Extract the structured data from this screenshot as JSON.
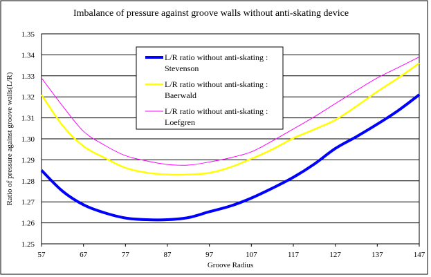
{
  "chart_data": {
    "type": "line",
    "title": "Imbalance of pressure against groove walls without anti-skating device",
    "xlabel": "Groove Radius",
    "ylabel": "Ratio of pressure against groove walls(L/R)",
    "xlim": [
      57,
      147
    ],
    "ylim": [
      1.25,
      1.35
    ],
    "xticks": [
      "57",
      "67",
      "77",
      "87",
      "97",
      "107",
      "117",
      "127",
      "137",
      "147"
    ],
    "yticks": [
      "1.25",
      "1.26",
      "1.27",
      "1.28",
      "1.29",
      "1.30",
      "1.31",
      "1.32",
      "1.33",
      "1.34",
      "1.35"
    ],
    "grid": true,
    "legend_position": "top-center",
    "x": [
      57,
      62,
      67,
      72,
      77,
      82,
      87,
      92,
      97,
      102,
      107,
      112,
      117,
      122,
      127,
      132,
      137,
      142,
      147
    ],
    "series": [
      {
        "name": "L/R ratio without anti-skating : Stevenson",
        "line1": "L/R ratio without anti-skating :",
        "line2": "Stevenson",
        "color": "#0000ff",
        "width": 4,
        "values": [
          1.285,
          1.2751,
          1.2686,
          1.2648,
          1.2623,
          1.2615,
          1.2615,
          1.2625,
          1.2653,
          1.268,
          1.2718,
          1.2765,
          1.2817,
          1.288,
          1.2954,
          1.301,
          1.307,
          1.3135,
          1.321
        ]
      },
      {
        "name": "L/R ratio without anti-skating : Baerwald",
        "line1": "L/R ratio without anti-skating :",
        "line2": "Baerwald",
        "color": "#ffff00",
        "width": 2.5,
        "values": [
          1.321,
          1.3064,
          1.2965,
          1.291,
          1.2862,
          1.2839,
          1.283,
          1.283,
          1.2838,
          1.2865,
          1.2905,
          1.295,
          1.3003,
          1.3045,
          1.309,
          1.3155,
          1.3225,
          1.329,
          1.336
        ]
      },
      {
        "name": "L/R ratio without anti-skating : Loefgren",
        "line1": "L/R ratio without anti-skating :",
        "line2": "Loefgren",
        "color": "#ff00ff",
        "width": 1,
        "values": [
          1.329,
          1.3157,
          1.3036,
          1.297,
          1.292,
          1.2895,
          1.2878,
          1.2875,
          1.289,
          1.291,
          1.2938,
          1.299,
          1.3047,
          1.3105,
          1.3168,
          1.323,
          1.329,
          1.334,
          1.339
        ]
      }
    ]
  }
}
